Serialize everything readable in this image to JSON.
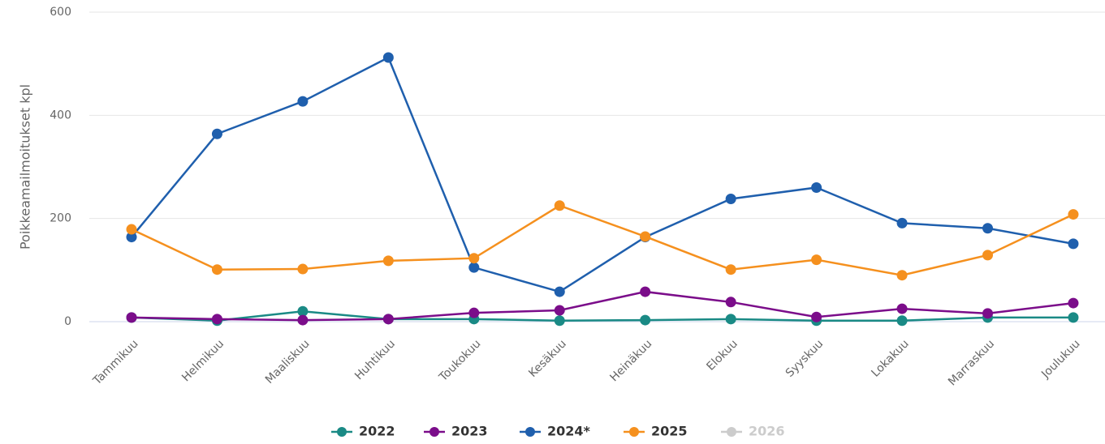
{
  "chart_data": {
    "type": "line",
    "y_axis_label": "Poikkeamailmoitukset kpl",
    "categories": [
      "Tammikuu",
      "Helmikuu",
      "Maaliskuu",
      "Huhtikuu",
      "Toukokuu",
      "Kesäkuu",
      "Heinäkuu",
      "Elokuu",
      "Syyskuu",
      "Lokakuu",
      "Marraskuu",
      "Joulukuu"
    ],
    "series": [
      {
        "name": "2022",
        "color": "#1a8a85",
        "values": [
          8,
          2,
          20,
          5,
          5,
          2,
          3,
          5,
          2,
          2,
          8,
          8
        ]
      },
      {
        "name": "2023",
        "color": "#7b0d8a",
        "values": [
          8,
          5,
          3,
          5,
          17,
          22,
          58,
          38,
          9,
          25,
          16,
          36
        ]
      },
      {
        "name": "2024*",
        "color": "#1f5fad",
        "values": [
          164,
          364,
          427,
          512,
          105,
          58,
          164,
          238,
          260,
          191,
          181,
          151
        ]
      },
      {
        "name": "2025",
        "color": "#f5901e",
        "values": [
          179,
          101,
          102,
          118,
          123,
          225,
          165,
          101,
          120,
          90,
          129,
          208
        ]
      },
      {
        "name": "2026",
        "color": "#cccccc",
        "visible": false,
        "values": [
          null,
          null,
          null,
          null,
          null,
          null,
          null,
          null,
          null,
          null,
          null,
          null
        ]
      }
    ],
    "ylim": [
      0,
      600
    ],
    "yticks": [
      0,
      200,
      400,
      600
    ],
    "grid": true,
    "legend": "bottom"
  }
}
